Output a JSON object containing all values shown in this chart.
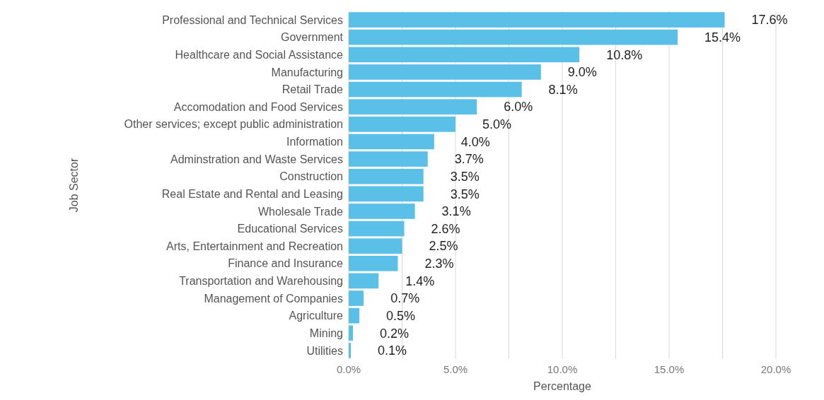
{
  "chart_data": {
    "type": "bar",
    "orientation": "horizontal",
    "xlabel": "Percentage",
    "ylabel": "Job Sector",
    "categories": [
      "Professional and Technical Services",
      "Government",
      "Healthcare and Social Assistance",
      "Manufacturing",
      "Retail Trade",
      "Accomodation and Food Services",
      "Other services; except public administration",
      "Information",
      "Adminstration and Waste Services",
      "Construction",
      "Real Estate and Rental and Leasing",
      "Wholesale Trade",
      "Educational Services",
      "Arts, Entertainment and Recreation",
      "Finance and Insurance",
      "Transportation and Warehousing",
      "Management of Companies",
      "Agriculture",
      "Mining",
      "Utilities"
    ],
    "values": [
      17.6,
      15.4,
      10.8,
      9.0,
      8.1,
      6.0,
      5.0,
      4.0,
      3.7,
      3.5,
      3.5,
      3.1,
      2.6,
      2.5,
      2.3,
      1.4,
      0.7,
      0.5,
      0.2,
      0.1
    ],
    "value_labels": [
      "17.6%",
      "15.4%",
      "10.8%",
      "9.0%",
      "8.1%",
      "6.0%",
      "5.0%",
      "4.0%",
      "3.7%",
      "3.5%",
      "3.5%",
      "3.1%",
      "2.6%",
      "2.5%",
      "2.3%",
      "1.4%",
      "0.7%",
      "0.5%",
      "0.2%",
      "0.1%"
    ],
    "color": "#5bc0e8",
    "xlim": [
      0,
      20
    ],
    "xticks": [
      {
        "value": 0,
        "label": "0.0%"
      },
      {
        "value": 2.5,
        "label": null
      },
      {
        "value": 5,
        "label": "5.0%"
      },
      {
        "value": 7.5,
        "label": null
      },
      {
        "value": 10,
        "label": "10.0%"
      },
      {
        "value": 12.5,
        "label": null
      },
      {
        "value": 15,
        "label": "15.0%"
      },
      {
        "value": 17.5,
        "label": null
      },
      {
        "value": 20,
        "label": "20.0%"
      }
    ],
    "grid": "x"
  }
}
